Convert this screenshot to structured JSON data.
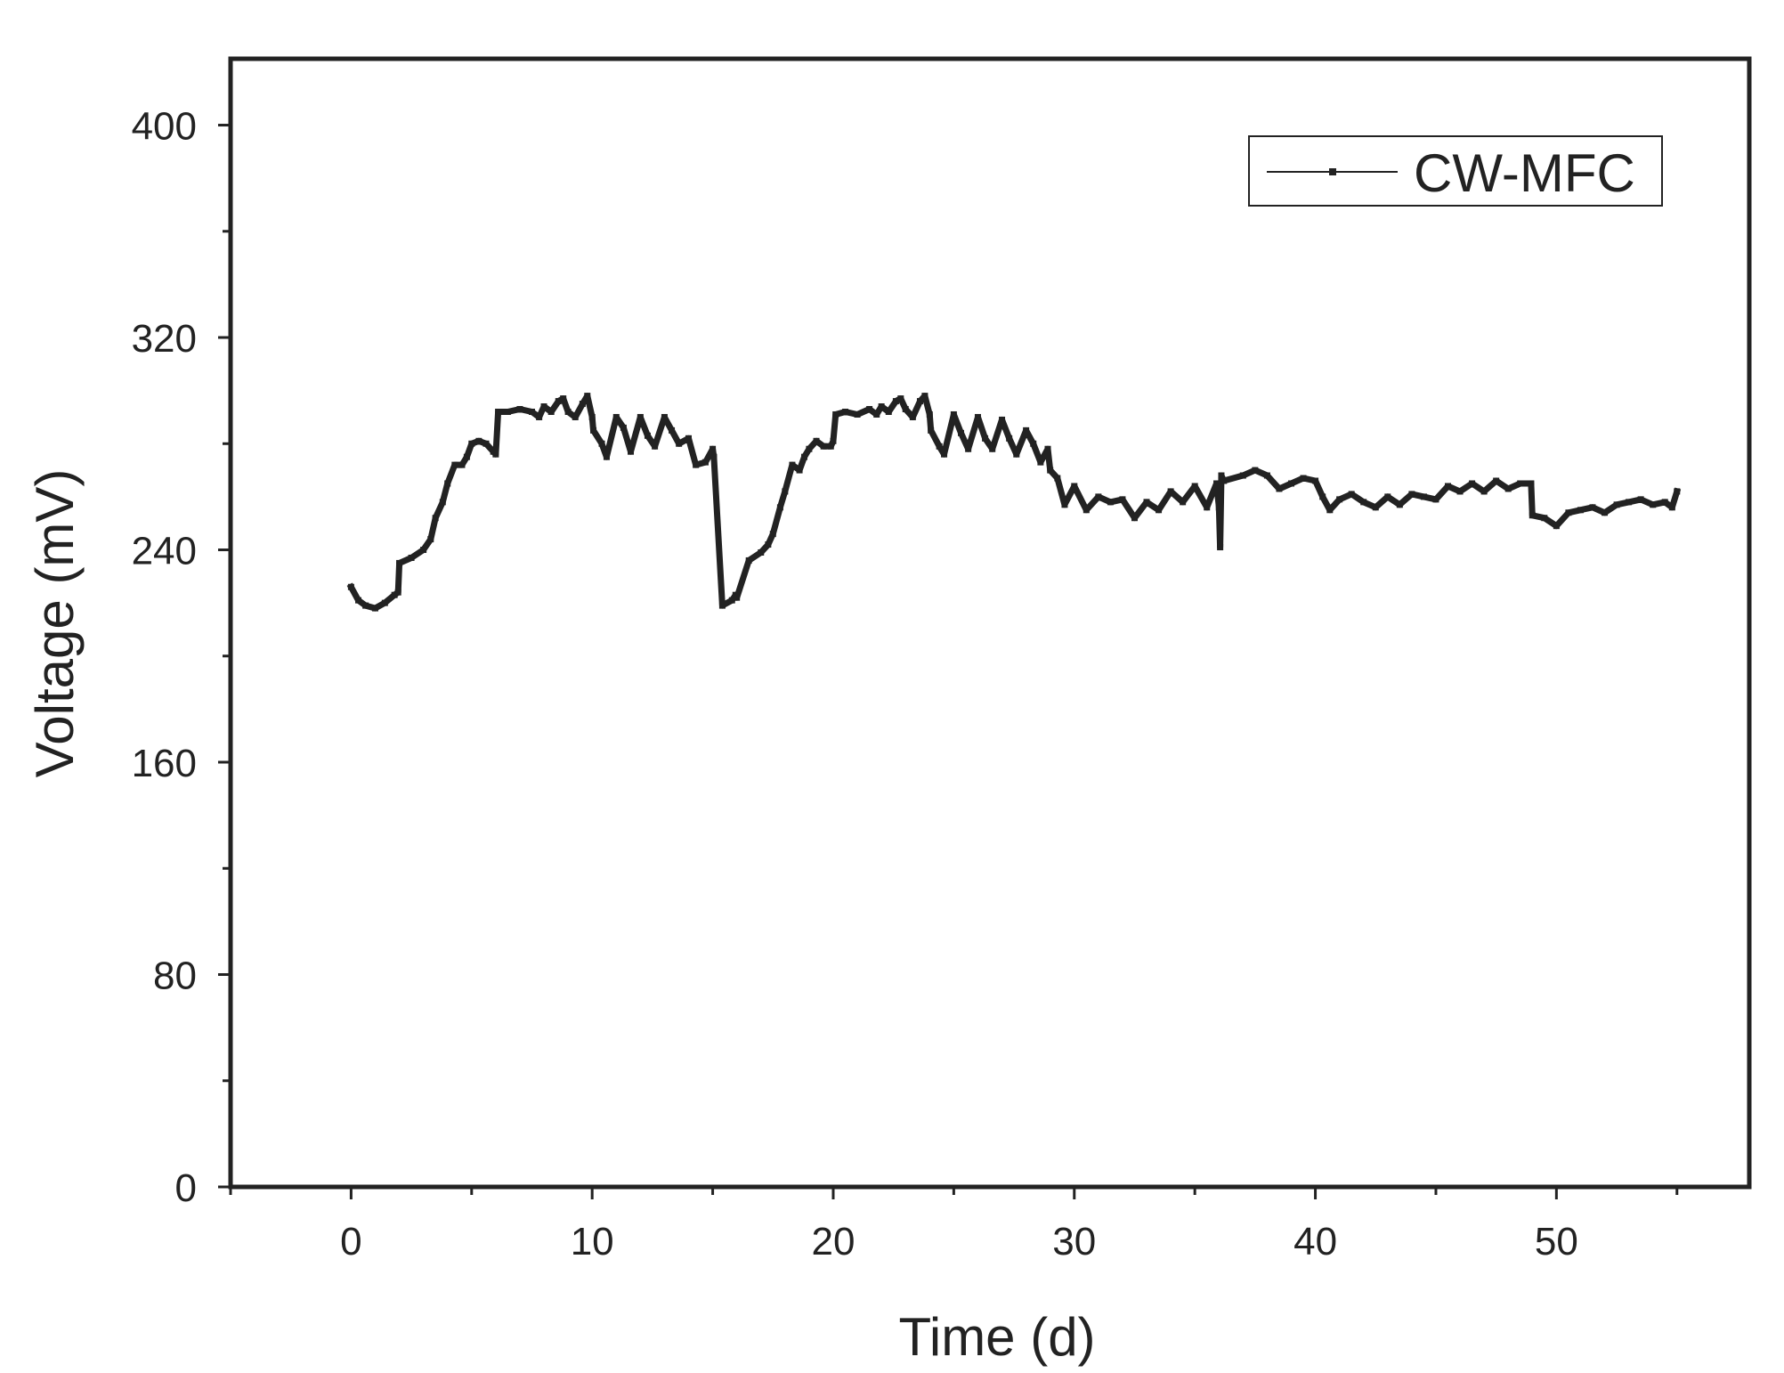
{
  "chart_data": {
    "type": "line",
    "title": "",
    "xlabel": "Time (d)",
    "ylabel": "Voltage (mV)",
    "xlim": [
      -5,
      58
    ],
    "ylim": [
      0,
      425
    ],
    "x_ticks": [
      0,
      10,
      20,
      30,
      40,
      50
    ],
    "x_minor_ticks": [
      -5,
      5,
      15,
      25,
      35,
      45,
      55
    ],
    "y_ticks": [
      0,
      80,
      160,
      240,
      320,
      400
    ],
    "y_minor_ticks": [
      40,
      120,
      200,
      280,
      360
    ],
    "grid": false,
    "legend_position": "top-right",
    "series": [
      {
        "name": "CW-MFC",
        "color": "#222222",
        "x": [
          0,
          0.3,
          0.6,
          1.0,
          1.4,
          1.8,
          1.95,
          2.0,
          2.5,
          3.0,
          3.3,
          3.5,
          3.8,
          4.0,
          4.3,
          4.6,
          4.8,
          5.0,
          5.3,
          5.6,
          5.9,
          6.0,
          6.1,
          6.5,
          7.0,
          7.5,
          7.8,
          8.0,
          8.3,
          8.6,
          8.8,
          9.0,
          9.3,
          9.6,
          9.8,
          10.0,
          10.05,
          10.4,
          10.6,
          11.0,
          11.3,
          11.6,
          12.0,
          12.3,
          12.6,
          13.0,
          13.3,
          13.6,
          14.0,
          14.3,
          14.7,
          15.0,
          15.05,
          15.4,
          15.8,
          15.95,
          16.0,
          16.5,
          17.0,
          17.3,
          17.5,
          17.8,
          18.0,
          18.3,
          18.6,
          18.8,
          19.0,
          19.3,
          19.6,
          19.9,
          20.0,
          20.1,
          20.5,
          21.0,
          21.5,
          21.8,
          22.0,
          22.3,
          22.6,
          22.8,
          23.0,
          23.3,
          23.6,
          23.8,
          24.0,
          24.05,
          24.4,
          24.6,
          25.0,
          25.3,
          25.6,
          26.0,
          26.3,
          26.6,
          27.0,
          27.3,
          27.6,
          28.0,
          28.3,
          28.6,
          28.9,
          29.0,
          29.3,
          29.6,
          30.0,
          30.5,
          31.0,
          31.5,
          32.0,
          32.5,
          33.0,
          33.5,
          34.0,
          34.5,
          35.0,
          35.5,
          35.9,
          36.0,
          36.05,
          36.1,
          36.2,
          37.0,
          37.5,
          38.0,
          38.5,
          39.0,
          39.5,
          40.0,
          40.3,
          40.6,
          41.0,
          41.5,
          42.0,
          42.5,
          43.0,
          43.5,
          44.0,
          44.5,
          45.0,
          45.5,
          46.0,
          46.5,
          47.0,
          47.5,
          48.0,
          48.5,
          48.95,
          49.0,
          49.5,
          50.0,
          50.5,
          51.0,
          51.5,
          52.0,
          52.5,
          53.0,
          53.5,
          54.0,
          54.5,
          54.8,
          55.0
        ],
        "y": [
          226,
          221,
          219,
          218,
          220,
          223,
          224,
          235,
          237,
          240,
          244,
          252,
          258,
          265,
          272,
          272,
          275,
          280,
          281,
          280,
          277,
          276,
          292,
          292,
          293,
          292,
          290,
          294,
          292,
          296,
          297,
          292,
          290,
          295,
          298,
          290,
          285,
          280,
          275,
          290,
          286,
          277,
          290,
          283,
          279,
          290,
          285,
          280,
          282,
          272,
          273,
          278,
          275,
          219,
          221,
          223,
          222,
          236,
          239,
          242,
          246,
          256,
          262,
          272,
          270,
          275,
          278,
          281,
          279,
          279,
          281,
          291,
          292,
          291,
          293,
          291,
          294,
          292,
          296,
          297,
          293,
          290,
          296,
          298,
          291,
          285,
          279,
          276,
          291,
          284,
          278,
          290,
          282,
          278,
          289,
          282,
          276,
          285,
          280,
          273,
          278,
          270,
          267,
          257,
          264,
          255,
          260,
          258,
          259,
          252,
          258,
          255,
          262,
          258,
          264,
          256,
          265,
          256,
          241,
          268,
          266,
          268,
          270,
          268,
          263,
          265,
          267,
          266,
          260,
          255,
          259,
          261,
          258,
          256,
          260,
          257,
          261,
          260,
          259,
          264,
          262,
          265,
          262,
          266,
          263,
          265,
          265,
          253,
          252,
          249,
          254,
          255,
          256,
          254,
          257,
          258,
          259,
          257,
          258,
          256,
          262
        ]
      }
    ]
  }
}
